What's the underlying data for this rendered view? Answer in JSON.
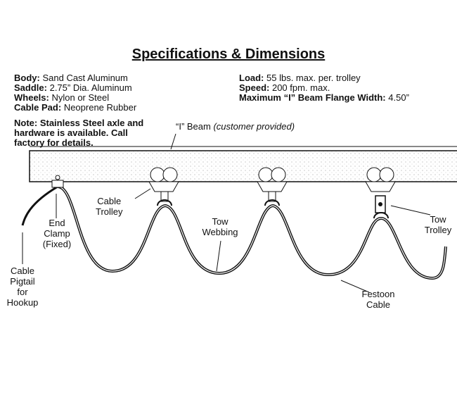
{
  "title": "Specifications & Dimensions",
  "specs_left": [
    {
      "key": "Body:",
      "value": "Sand Cast Aluminum"
    },
    {
      "key": "Saddle:",
      "value": "2.75” Dia. Aluminum"
    },
    {
      "key": "Wheels:",
      "value": "Nylon or Steel"
    },
    {
      "key": "Cable Pad:",
      "value": "Neoprene Rubber"
    }
  ],
  "specs_right": [
    {
      "key": "Load:",
      "value": "55 lbs. max. per. trolley"
    },
    {
      "key": "Speed:",
      "value": "200 fpm. max."
    },
    {
      "key": "Maximum “I” Beam Flange Width:",
      "value": "4.50”"
    }
  ],
  "note": "Note: Stainless Steel axle and hardware is available.  Call factory for details.",
  "labels": {
    "beam": "“I” Beam",
    "beam_note": "(customer provided)",
    "cable_trolley": [
      "Cable",
      "Trolley"
    ],
    "end_clamp": [
      "End",
      "Clamp",
      "(Fixed)"
    ],
    "pigtail": [
      "Cable",
      "Pigtail",
      "for",
      "Hookup"
    ],
    "tow_webbing": [
      "Tow",
      "Webbing"
    ],
    "festoon": [
      "Festoon",
      "Cable"
    ],
    "tow_trolley": [
      "Tow",
      "Trolley"
    ]
  }
}
